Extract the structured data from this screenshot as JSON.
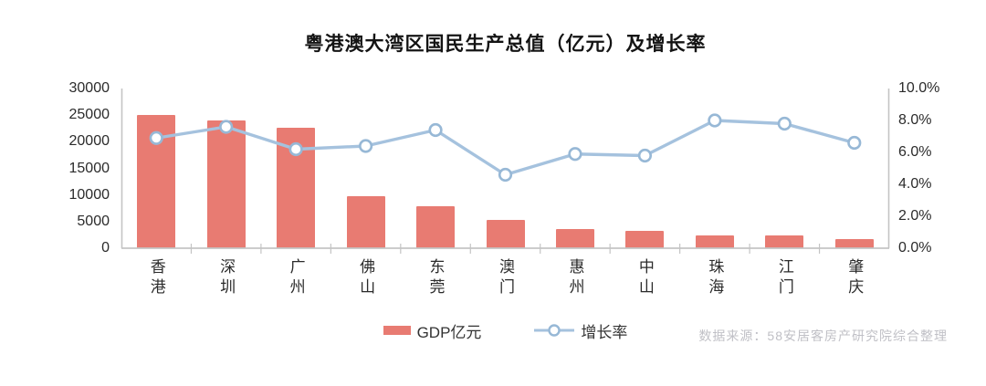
{
  "page": {
    "background": "#ffffff"
  },
  "chart_data": {
    "type": "combo",
    "title": "粤港澳大湾区国民生产总值（亿元）及增长率",
    "categories": [
      "香港",
      "深圳",
      "广州",
      "佛山",
      "东莞",
      "澳门",
      "惠州",
      "中山",
      "珠海",
      "江门",
      "肇庆"
    ],
    "series": [
      {
        "name": "GDP亿元",
        "type": "bar",
        "axis": "left",
        "color": "#e87b72",
        "values": [
          25000,
          24000,
          22600,
          9700,
          7900,
          5300,
          3650,
          3300,
          2350,
          2450,
          1800
        ]
      },
      {
        "name": "增长率",
        "type": "line",
        "axis": "right",
        "color": "#a5c2de",
        "marker_fill": "#ffffff",
        "marker_stroke": "#97b8d6",
        "values": [
          6.9,
          7.6,
          6.2,
          6.4,
          7.4,
          4.6,
          5.9,
          5.8,
          8.0,
          7.8,
          6.6
        ]
      }
    ],
    "left_axis": {
      "min": 0,
      "max": 30000,
      "step": 5000,
      "tick_labels": [
        "30000",
        "25000",
        "20000",
        "15000",
        "10000",
        "5000",
        "0"
      ]
    },
    "right_axis": {
      "min": 0,
      "max": 10,
      "step": 2,
      "tick_labels": [
        "10.0%",
        "8.0%",
        "6.0%",
        "4.0%",
        "2.0%",
        "0.0%"
      ]
    },
    "grid": false,
    "legend_position": "bottom",
    "axis_color": "#c4c4c4",
    "text_color": "#2b2b2b"
  },
  "legend": {
    "gdp_label": "GDP亿元",
    "growth_label": "增长率"
  },
  "footer": {
    "source_note": "数据来源：58安居客房产研究院综合整理"
  }
}
